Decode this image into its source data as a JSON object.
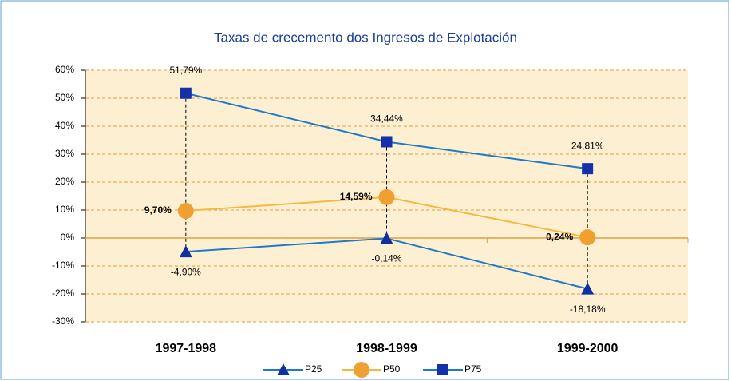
{
  "chart_data": {
    "type": "line",
    "title": "Taxas de crecemento dos Ingresos de Explotación",
    "categories": [
      "1997-1998",
      "1998-1999",
      "1999-2000"
    ],
    "series": [
      {
        "name": "P25",
        "color": "#1e7ac8",
        "marker_color": "#1030a0",
        "marker": "triangle",
        "values": [
          -4.9,
          -0.14,
          -18.18
        ],
        "value_labels": [
          "-4,90%",
          "-0,14%",
          "-18,18%"
        ]
      },
      {
        "name": "P50",
        "color": "#f5b942",
        "marker_color": "#f0a030",
        "marker": "circle",
        "values": [
          9.7,
          14.59,
          0.24
        ],
        "value_labels": [
          "9,70%",
          "14,59%",
          "0,24%"
        ]
      },
      {
        "name": "P75",
        "color": "#1e7ac8",
        "marker_color": "#1530a8",
        "marker": "square",
        "values": [
          51.79,
          34.44,
          24.81
        ],
        "value_labels": [
          "51,79%",
          "34,44%",
          "24,81%"
        ]
      }
    ],
    "ylim": [
      -30,
      60
    ],
    "yticks": [
      {
        "value": -30,
        "label": "-30%"
      },
      {
        "value": -20,
        "label": "-20%"
      },
      {
        "value": -10,
        "label": "-10%"
      },
      {
        "value": 0,
        "label": "0%"
      },
      {
        "value": 10,
        "label": "10%"
      },
      {
        "value": 20,
        "label": "20%"
      },
      {
        "value": 30,
        "label": "30%"
      },
      {
        "value": 40,
        "label": "40%"
      },
      {
        "value": 50,
        "label": "50%"
      },
      {
        "value": 60,
        "label": "60%"
      }
    ],
    "grid": true
  }
}
